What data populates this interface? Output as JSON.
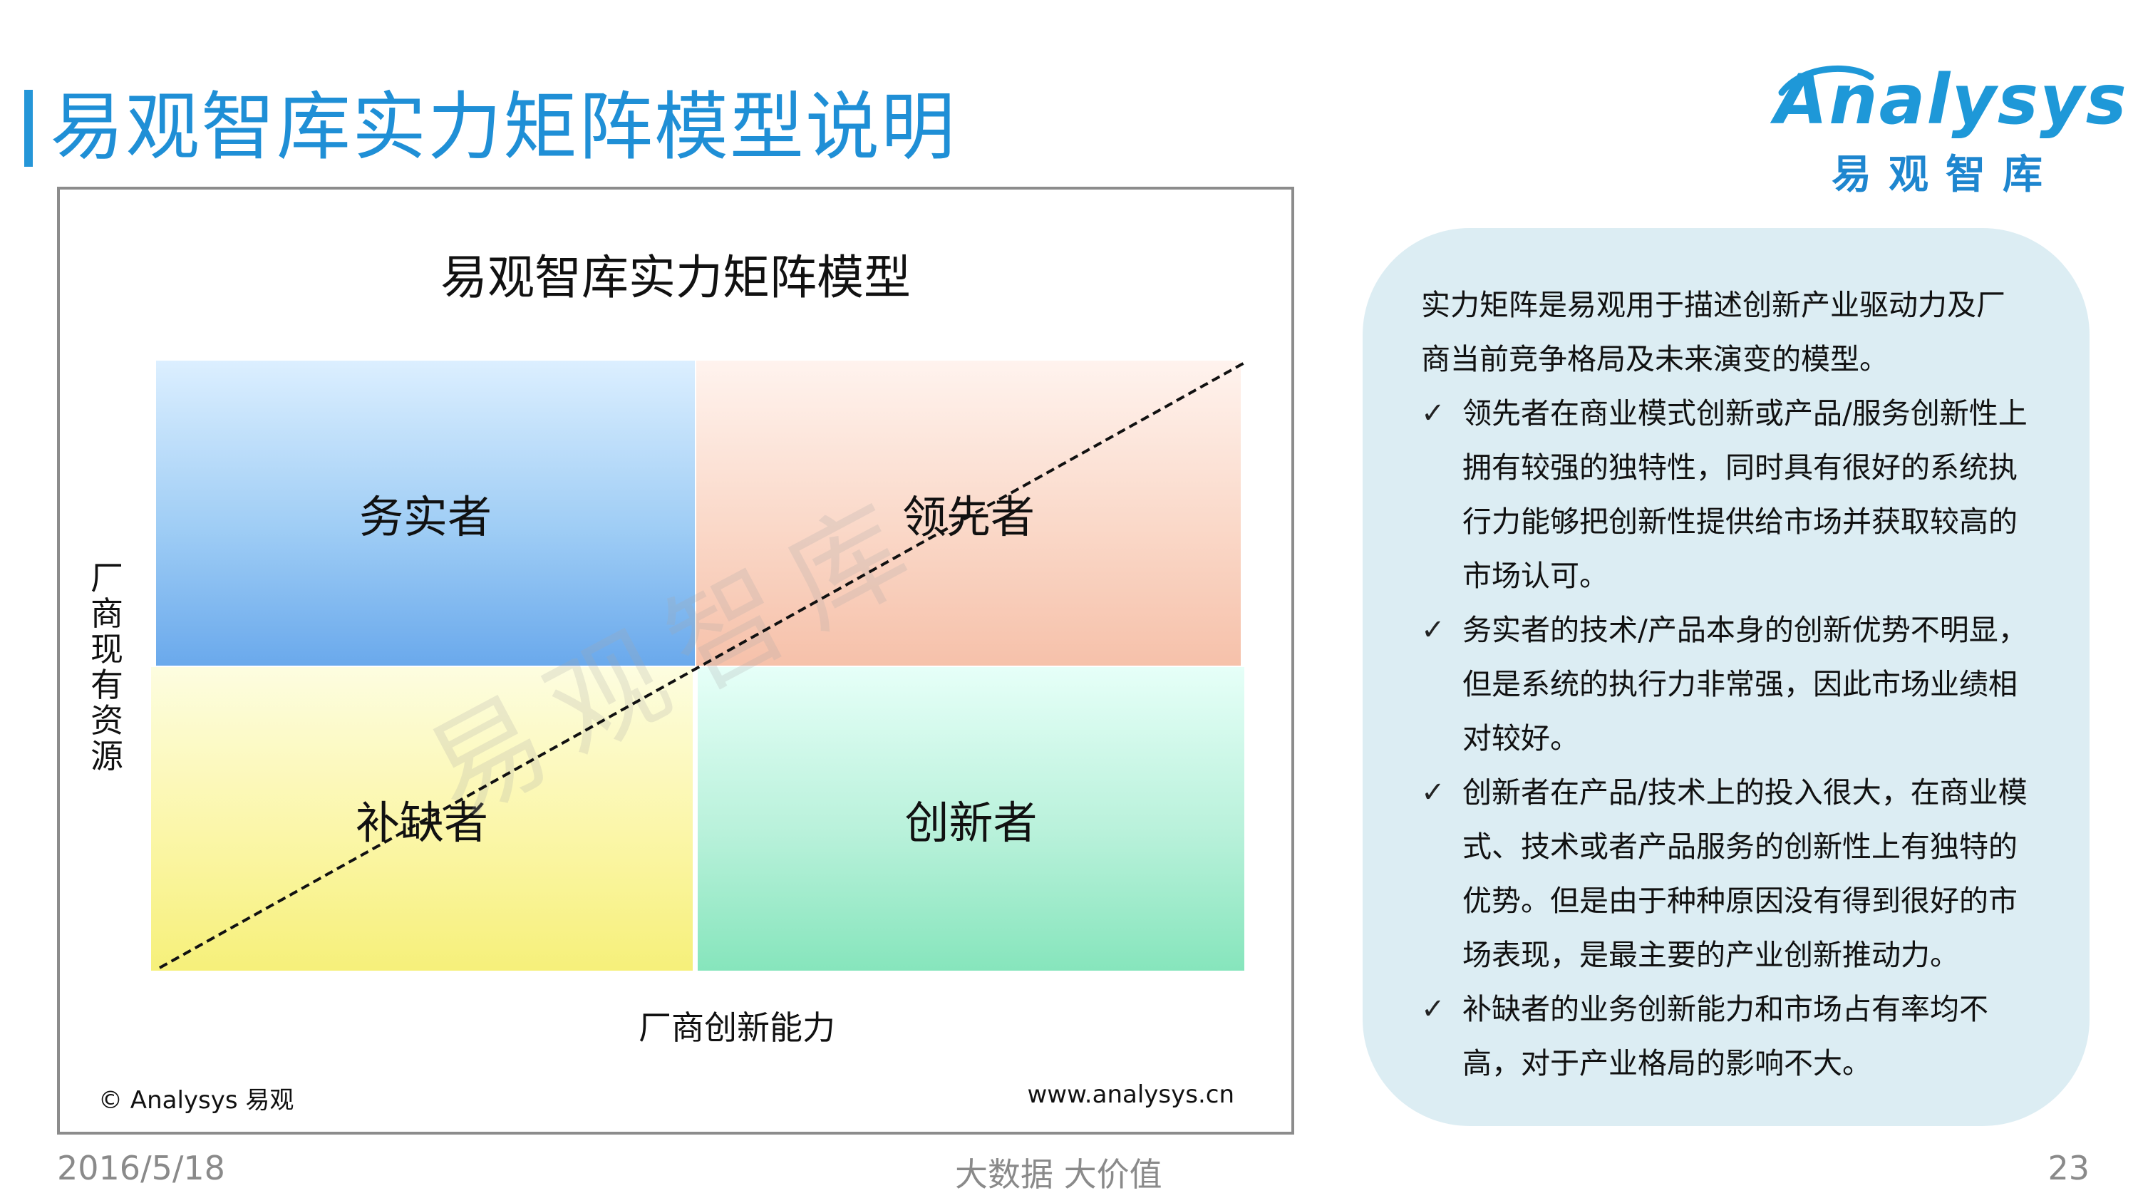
{
  "header": {
    "title": "易观智库实力矩阵模型说明"
  },
  "logo": {
    "wordmark": "Analysys",
    "cn": "易观智库"
  },
  "figure": {
    "title": "易观智库实力矩阵模型",
    "quadrants": {
      "top_left": "务实者",
      "top_right": "领先者",
      "bottom_left": "补缺者",
      "bottom_right": "创新者"
    },
    "y_axis_label": "厂商现有资源",
    "x_axis_label": "厂商创新能力",
    "watermark": "易观智库",
    "copyright": "© Analysys 易观",
    "website": "www.analysys.cn"
  },
  "panel": {
    "intro": "实力矩阵是易观用于描述创新产业驱动力及厂商当前竞争格局及未来演变的模型。",
    "bullets": [
      "领先者在商业模式创新或产品/服务创新性上拥有较强的独特性，同时具有很好的系统执行力能够把创新性提供给市场并获取较高的市场认可。",
      "务实者的技术/产品本身的创新优势不明显，但是系统的执行力非常强，因此市场业绩相对较好。",
      "创新者在产品/技术上的投入很大，在商业模式、技术或者产品服务的创新性上有独特的优势。但是由于种种原因没有得到很好的市场表现，是最主要的产业创新推动力。",
      "补缺者的业务创新能力和市场占有率均不高，对于产业格局的影响不大。"
    ],
    "check_glyph": "✓"
  },
  "footer": {
    "date": "2016/5/18",
    "slogan": "大数据    大价值",
    "page": "23"
  },
  "colors": {
    "title_blue": "#1f8fd6",
    "panel_bg": "#dcedf3",
    "border_gray": "#8c8c8c"
  }
}
